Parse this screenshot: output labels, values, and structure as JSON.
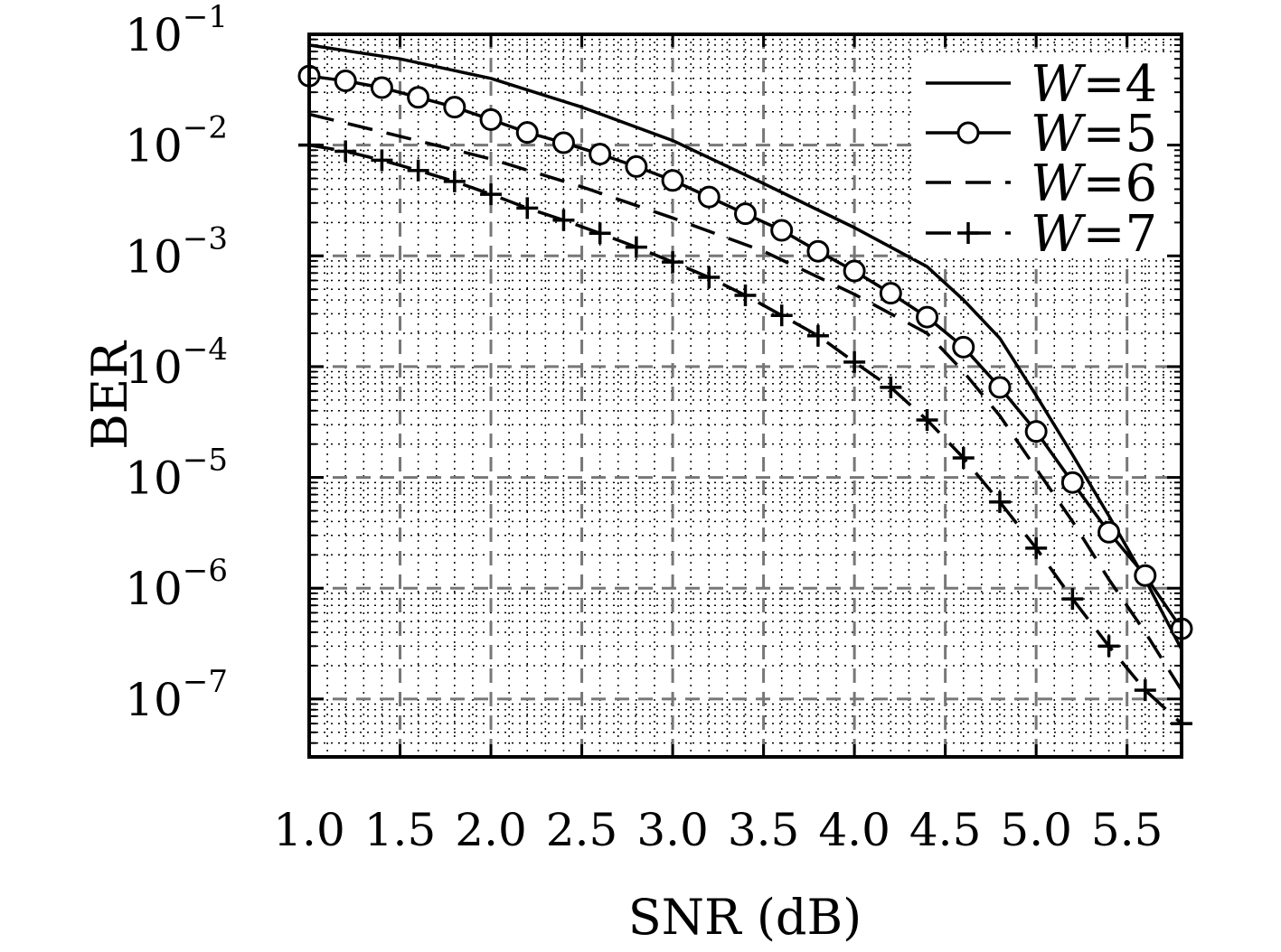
{
  "chart_data": {
    "type": "line",
    "title": "",
    "xlabel": "SNR (dB)",
    "ylabel": "BER",
    "xlim": [
      1.0,
      5.8
    ],
    "ylim": [
      3e-08,
      0.1
    ],
    "yscale": "log",
    "grid": "major dashed, minor dotted",
    "legend_position": "top-right",
    "x_ticks": [
      "1.0",
      "1.5",
      "2.0",
      "2.5",
      "3.0",
      "3.5",
      "4.0",
      "4.5",
      "5.0",
      "5.5"
    ],
    "y_ticks": [
      {
        "base": "10",
        "exp": "−1"
      },
      {
        "base": "10",
        "exp": "−2"
      },
      {
        "base": "10",
        "exp": "−3"
      },
      {
        "base": "10",
        "exp": "−4"
      },
      {
        "base": "10",
        "exp": "−5"
      },
      {
        "base": "10",
        "exp": "−6"
      },
      {
        "base": "10",
        "exp": "−7"
      }
    ],
    "series": [
      {
        "name": "W=4",
        "legend_base": "W",
        "legend_value": "=4",
        "marker": "none",
        "dash": "solid",
        "x": [
          1.0,
          1.5,
          2.0,
          2.5,
          3.0,
          3.5,
          4.0,
          4.4,
          4.6,
          4.8,
          5.0,
          5.2,
          5.4,
          5.6,
          5.8
        ],
        "y": [
          0.08,
          0.06,
          0.04,
          0.022,
          0.011,
          0.0045,
          0.0018,
          0.0008,
          0.0004,
          0.00018,
          5.5e-05,
          1.6e-05,
          4.5e-06,
          1.2e-06,
          2.8e-07
        ]
      },
      {
        "name": "W=5",
        "legend_base": "W",
        "legend_value": "=5",
        "marker": "circle",
        "dash": "solid",
        "x": [
          1.0,
          1.2,
          1.4,
          1.6,
          1.8,
          2.0,
          2.2,
          2.4,
          2.6,
          2.8,
          3.0,
          3.2,
          3.4,
          3.6,
          3.8,
          4.0,
          4.2,
          4.4,
          4.6,
          4.8,
          5.0,
          5.2,
          5.4,
          5.6,
          5.8
        ],
        "y": [
          0.042,
          0.038,
          0.033,
          0.027,
          0.022,
          0.017,
          0.013,
          0.0105,
          0.0083,
          0.0064,
          0.0048,
          0.0034,
          0.0024,
          0.0017,
          0.0011,
          0.00073,
          0.00046,
          0.00028,
          0.00015,
          6.5e-05,
          2.6e-05,
          9e-06,
          3.2e-06,
          1.3e-06,
          4.3e-07
        ]
      },
      {
        "name": "W=6",
        "legend_base": "W",
        "legend_value": "=6",
        "marker": "none",
        "dash": "dashed",
        "x": [
          1.0,
          1.5,
          2.0,
          2.5,
          3.0,
          3.5,
          4.0,
          4.4,
          4.6,
          4.8,
          5.0,
          5.2,
          5.4,
          5.6,
          5.8
        ],
        "y": [
          0.019,
          0.012,
          0.0075,
          0.0042,
          0.0022,
          0.0011,
          0.00045,
          0.0002,
          9e-05,
          3.6e-05,
          1.2e-05,
          4e-06,
          1.2e-06,
          4e-07,
          1.2e-07
        ]
      },
      {
        "name": "W=7",
        "legend_base": "W",
        "legend_value": "=7",
        "marker": "plus",
        "dash": "dashed",
        "x": [
          1.0,
          1.2,
          1.4,
          1.6,
          1.8,
          2.0,
          2.2,
          2.4,
          2.6,
          2.8,
          3.0,
          3.2,
          3.4,
          3.6,
          3.8,
          4.0,
          4.2,
          4.4,
          4.6,
          4.8,
          5.0,
          5.2,
          5.4,
          5.6,
          5.8
        ],
        "y": [
          0.01,
          0.0088,
          0.0073,
          0.0059,
          0.0047,
          0.0036,
          0.0027,
          0.0021,
          0.0016,
          0.0012,
          0.00088,
          0.00064,
          0.00044,
          0.00029,
          0.00019,
          0.00011,
          6.5e-05,
          3.3e-05,
          1.5e-05,
          6e-06,
          2.3e-06,
          8e-07,
          3e-07,
          1.2e-07,
          6e-08
        ]
      }
    ]
  }
}
